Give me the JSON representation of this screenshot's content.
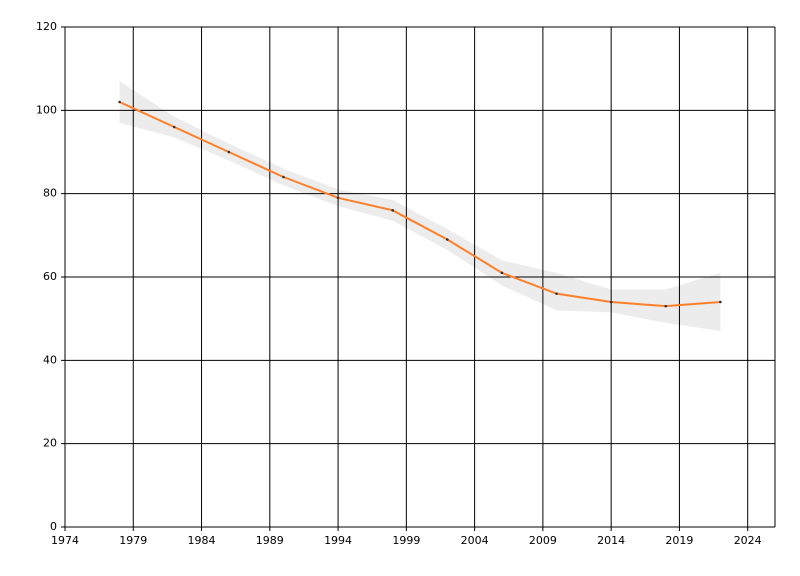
{
  "chart_data": {
    "type": "line",
    "x": [
      1978,
      1982,
      1986,
      1990,
      1994,
      1998,
      2002,
      2006,
      2010,
      2014,
      2018,
      2022
    ],
    "values": [
      102,
      96,
      90,
      84,
      79,
      76,
      69,
      61,
      56,
      54,
      53,
      54
    ],
    "lower": [
      97,
      93.5,
      88,
      82,
      77,
      73.5,
      66.5,
      58,
      52,
      51.5,
      49,
      47
    ],
    "upper": [
      107,
      98.5,
      92,
      86,
      81,
      78.5,
      71.5,
      64,
      61,
      57,
      57,
      61
    ],
    "color": "#ff7f2a",
    "band_color": "#ececec",
    "xlim": [
      1974,
      2026
    ],
    "xticks": [
      1974,
      1979,
      1984,
      1989,
      1994,
      1999,
      2004,
      2009,
      2014,
      2019,
      2024
    ],
    "ylim": [
      0,
      120
    ],
    "yticks": [
      0,
      20,
      40,
      60,
      80,
      100,
      120
    ],
    "grid": true
  }
}
